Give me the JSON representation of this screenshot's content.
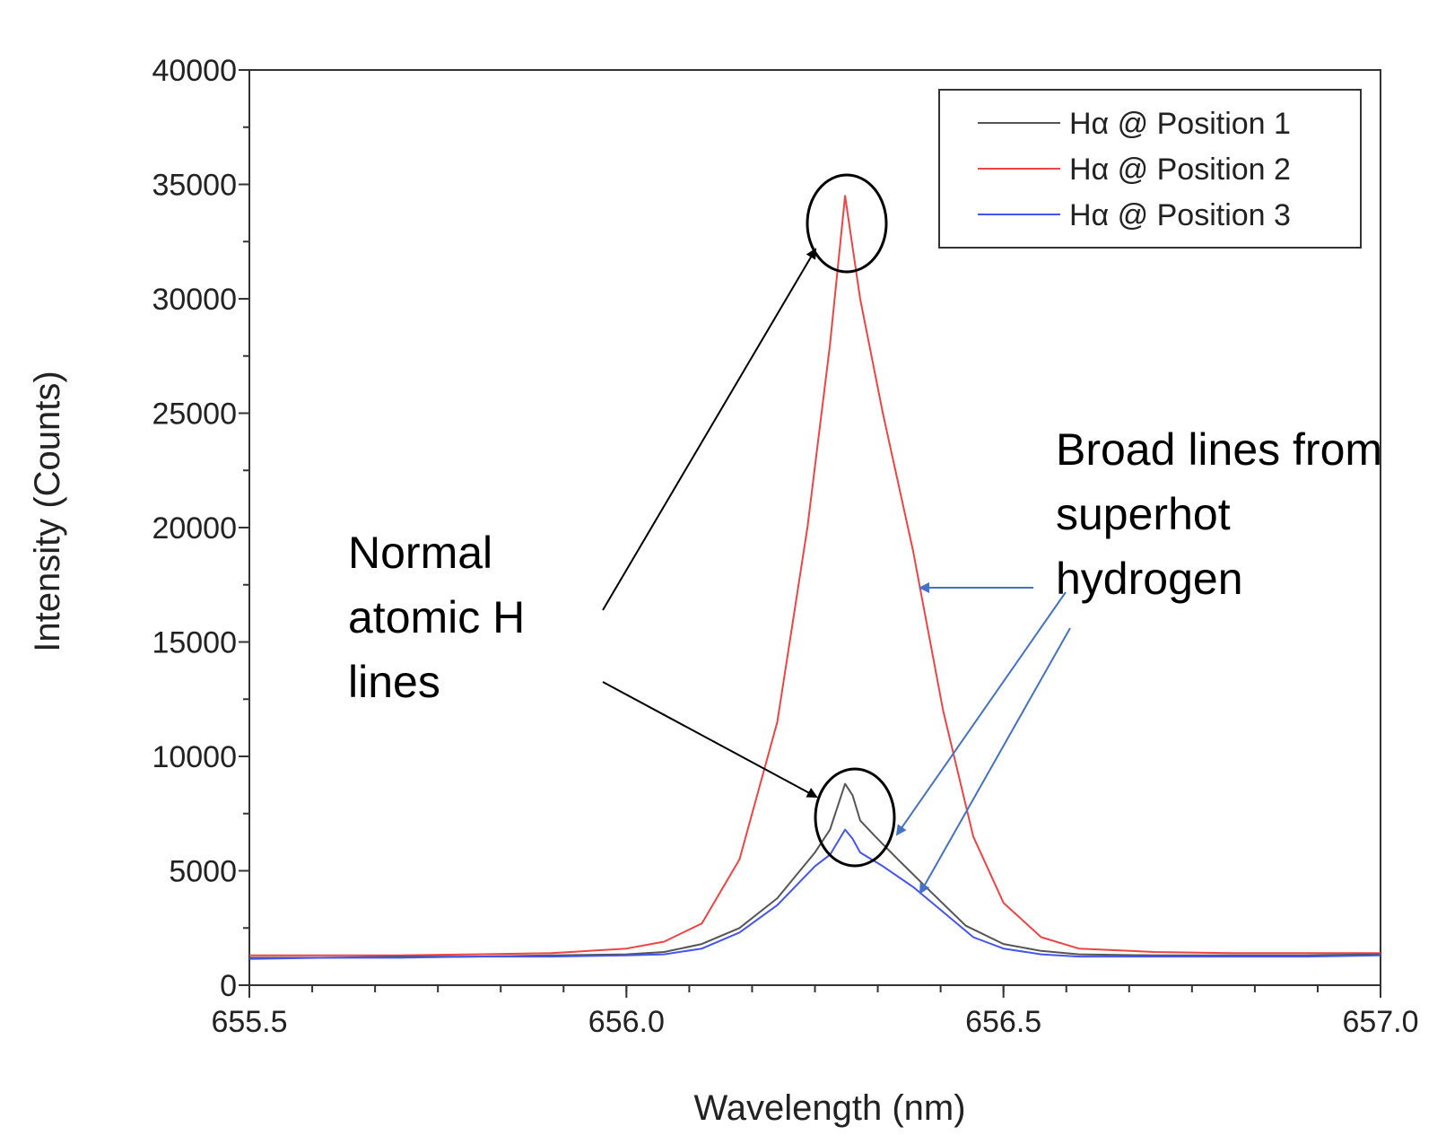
{
  "chart_data": {
    "type": "line",
    "title": "",
    "xlabel": "Wavelength (nm)",
    "ylabel": "Intensity (Counts)",
    "xlim": [
      655.5,
      657.0
    ],
    "ylim": [
      0,
      40000
    ],
    "x_ticks": [
      655.5,
      656.0,
      656.5,
      657.0
    ],
    "x_tick_labels": [
      "655.5",
      "656.0",
      "656.5",
      "657.0"
    ],
    "y_ticks": [
      0,
      5000,
      10000,
      15000,
      20000,
      25000,
      30000,
      35000,
      40000
    ],
    "y_tick_labels": [
      "0",
      "5000",
      "10000",
      "15000",
      "20000",
      "25000",
      "30000",
      "35000",
      "40000"
    ],
    "grid": false,
    "legend_position": "top-right",
    "series": [
      {
        "name": "Hα @ Position 1",
        "color": "#555555",
        "points": [
          [
            655.5,
            1200
          ],
          [
            655.6,
            1200
          ],
          [
            655.7,
            1250
          ],
          [
            655.8,
            1250
          ],
          [
            655.9,
            1300
          ],
          [
            656.0,
            1350
          ],
          [
            656.05,
            1450
          ],
          [
            656.1,
            1800
          ],
          [
            656.15,
            2500
          ],
          [
            656.2,
            3800
          ],
          [
            656.25,
            5800
          ],
          [
            656.27,
            6800
          ],
          [
            656.29,
            8800
          ],
          [
            656.3,
            8300
          ],
          [
            656.31,
            7200
          ],
          [
            656.33,
            6500
          ],
          [
            656.36,
            5500
          ],
          [
            656.4,
            4200
          ],
          [
            656.45,
            2600
          ],
          [
            656.5,
            1800
          ],
          [
            656.55,
            1500
          ],
          [
            656.6,
            1350
          ],
          [
            656.7,
            1300
          ],
          [
            656.8,
            1300
          ],
          [
            656.9,
            1300
          ],
          [
            657.0,
            1350
          ]
        ]
      },
      {
        "name": "Hα @ Position 2",
        "color": "#ee4444",
        "points": [
          [
            655.5,
            1300
          ],
          [
            655.6,
            1300
          ],
          [
            655.7,
            1300
          ],
          [
            655.8,
            1350
          ],
          [
            655.9,
            1400
          ],
          [
            655.95,
            1500
          ],
          [
            656.0,
            1600
          ],
          [
            656.05,
            1900
          ],
          [
            656.1,
            2700
          ],
          [
            656.15,
            5500
          ],
          [
            656.2,
            11500
          ],
          [
            656.24,
            20000
          ],
          [
            656.27,
            28000
          ],
          [
            656.29,
            34500
          ],
          [
            656.31,
            30000
          ],
          [
            656.34,
            25000
          ],
          [
            656.38,
            19000
          ],
          [
            656.42,
            12000
          ],
          [
            656.46,
            6500
          ],
          [
            656.5,
            3600
          ],
          [
            656.55,
            2100
          ],
          [
            656.6,
            1600
          ],
          [
            656.7,
            1450
          ],
          [
            656.8,
            1400
          ],
          [
            656.9,
            1400
          ],
          [
            657.0,
            1400
          ]
        ]
      },
      {
        "name": "Hα @ Position 3",
        "color": "#4455ee",
        "points": [
          [
            655.5,
            1150
          ],
          [
            655.6,
            1200
          ],
          [
            655.7,
            1200
          ],
          [
            655.8,
            1250
          ],
          [
            655.9,
            1250
          ],
          [
            656.0,
            1300
          ],
          [
            656.05,
            1350
          ],
          [
            656.1,
            1600
          ],
          [
            656.15,
            2300
          ],
          [
            656.2,
            3500
          ],
          [
            656.25,
            5200
          ],
          [
            656.27,
            5700
          ],
          [
            656.29,
            6800
          ],
          [
            656.3,
            6400
          ],
          [
            656.31,
            5800
          ],
          [
            656.34,
            5200
          ],
          [
            656.38,
            4300
          ],
          [
            656.42,
            3200
          ],
          [
            656.46,
            2100
          ],
          [
            656.5,
            1600
          ],
          [
            656.55,
            1350
          ],
          [
            656.6,
            1250
          ],
          [
            656.7,
            1250
          ],
          [
            656.8,
            1250
          ],
          [
            656.9,
            1250
          ],
          [
            657.0,
            1300
          ]
        ]
      }
    ],
    "annotations": [
      {
        "id": "normal",
        "lines": [
          "Normal",
          "atomic H",
          "lines"
        ]
      },
      {
        "id": "broad",
        "lines": [
          "Broad lines from",
          "superhot",
          "hydrogen"
        ]
      }
    ]
  }
}
